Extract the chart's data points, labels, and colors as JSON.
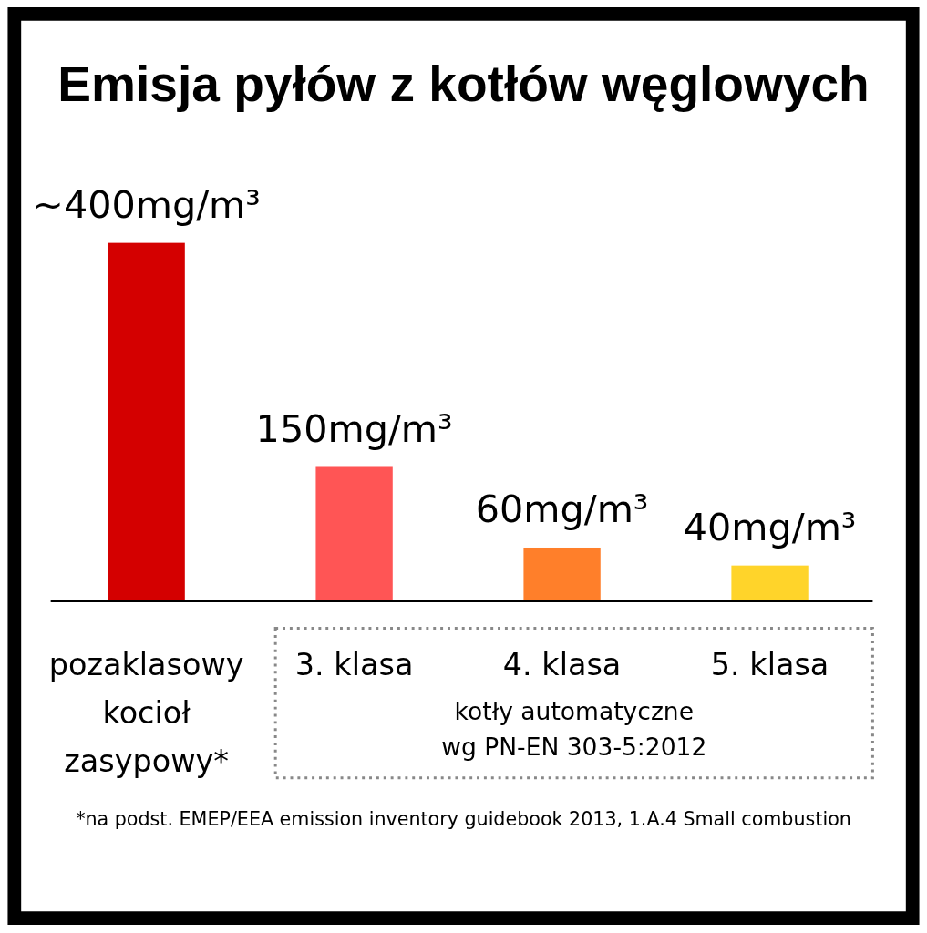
{
  "chart_data": {
    "type": "bar",
    "title": "Emisja pyłów z kotłów węglowych",
    "categories": [
      "pozaklasowy kocioł zasypowy*",
      "3. klasa",
      "4. klasa",
      "5. klasa"
    ],
    "values": [
      400,
      150,
      60,
      40
    ],
    "value_labels": [
      "~400mg/m³",
      "150mg/m³",
      "60mg/m³",
      "40mg/m³"
    ],
    "colors": [
      "#d40000",
      "#ff5555",
      "#ff7f2a",
      "#ffd42a"
    ],
    "annotations": [
      "kotły automatyczne\nwg PN-EN 303-5:2012",
      "*na podst. EMEP/EEA emission inventory guidebook 2013, 1.A.4 Small combustion"
    ]
  }
}
